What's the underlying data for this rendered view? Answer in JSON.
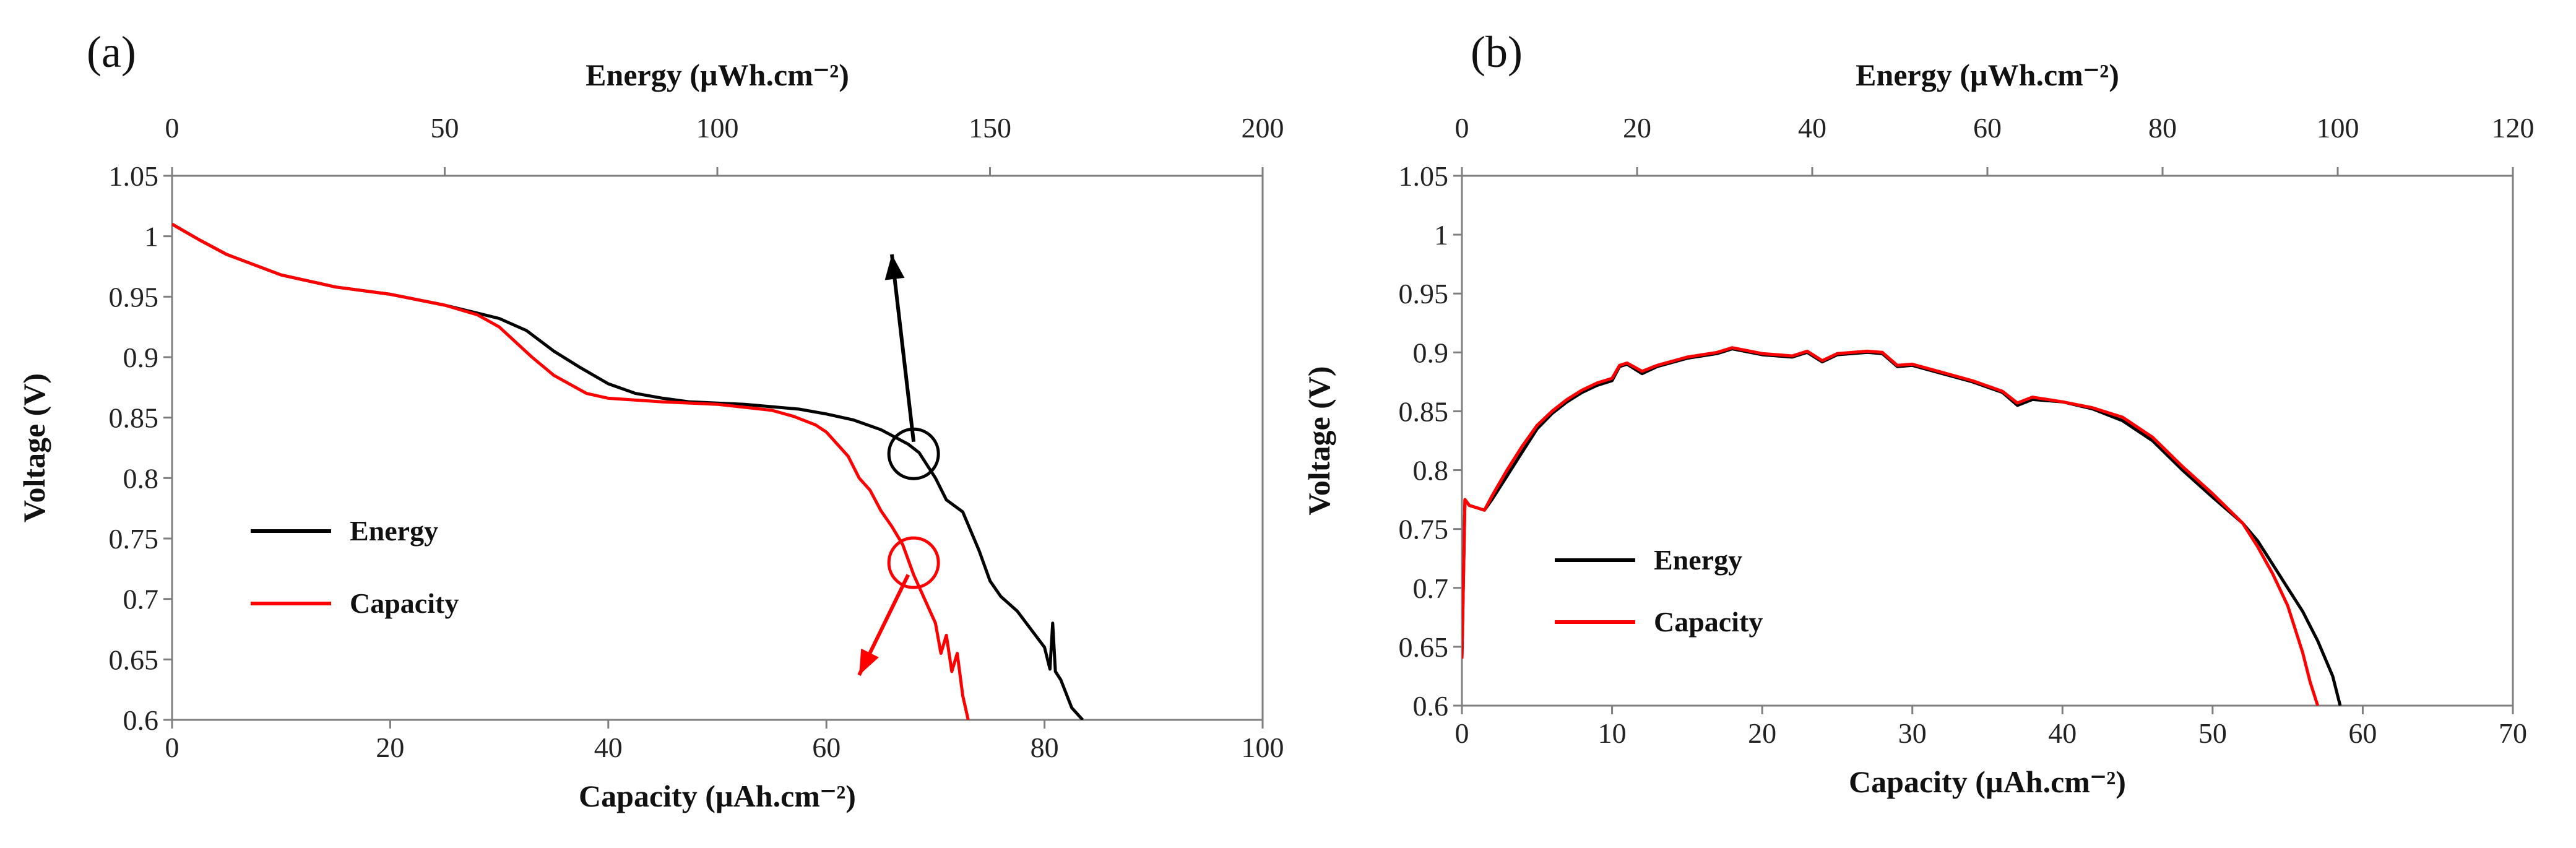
{
  "chart_data": [
    {
      "type": "line",
      "panel_label": "(a)",
      "xlabel": "Capacity (µAh.cm⁻²)",
      "x2label": "Energy (µWh.cm⁻²)",
      "ylabel": "Voltage (V)",
      "xlim": [
        0,
        100
      ],
      "x2lim": [
        0,
        200
      ],
      "ylim": [
        0.6,
        1.05
      ],
      "x_ticks": [
        0,
        20,
        40,
        60,
        80,
        100
      ],
      "x2_ticks": [
        0,
        50,
        100,
        150,
        200
      ],
      "y_ticks": [
        0.6,
        0.65,
        0.7,
        0.75,
        0.8,
        0.85,
        0.9,
        0.95,
        1,
        1.05
      ],
      "y_tick_labels": [
        "0.6",
        "0.65",
        "0.7",
        "0.75",
        "0.8",
        "0.85",
        "0.9",
        "0.95",
        "1",
        "1.05"
      ],
      "grid": false,
      "legend_position": "left-middle",
      "series": [
        {
          "name": "Energy",
          "axis": "top",
          "color": "#000000",
          "x": [
            0,
            5,
            10,
            20,
            30,
            40,
            50,
            60,
            65,
            70,
            75,
            80,
            85,
            90,
            95,
            100,
            105,
            110,
            115,
            120,
            125,
            130,
            135,
            137,
            140,
            142,
            145,
            148,
            150,
            152,
            155,
            158,
            160,
            161,
            161.5,
            162,
            163,
            165,
            167
          ],
          "y": [
            1.01,
            0.997,
            0.985,
            0.968,
            0.958,
            0.952,
            0.943,
            0.932,
            0.922,
            0.905,
            0.891,
            0.878,
            0.87,
            0.866,
            0.863,
            0.862,
            0.861,
            0.859,
            0.857,
            0.853,
            0.848,
            0.84,
            0.828,
            0.821,
            0.8,
            0.782,
            0.772,
            0.74,
            0.715,
            0.702,
            0.69,
            0.672,
            0.66,
            0.642,
            0.68,
            0.64,
            0.633,
            0.61,
            0.6
          ]
        },
        {
          "name": "Capacity",
          "axis": "bottom",
          "color": "#ff0000",
          "x": [
            0,
            2.5,
            5,
            10,
            15,
            20,
            25,
            28,
            30,
            33,
            35,
            38,
            40,
            45,
            50,
            55,
            57,
            59,
            60,
            62,
            63,
            64,
            65,
            66,
            67,
            68,
            69,
            70,
            70.5,
            71,
            71.5,
            72,
            72.5,
            73
          ],
          "y": [
            1.01,
            0.997,
            0.985,
            0.968,
            0.958,
            0.952,
            0.943,
            0.935,
            0.925,
            0.9,
            0.885,
            0.87,
            0.866,
            0.863,
            0.861,
            0.856,
            0.851,
            0.844,
            0.838,
            0.818,
            0.8,
            0.79,
            0.773,
            0.76,
            0.745,
            0.72,
            0.7,
            0.68,
            0.655,
            0.67,
            0.64,
            0.655,
            0.62,
            0.6
          ]
        }
      ],
      "annotations": [
        {
          "type": "circle",
          "series": "Energy",
          "x": 68,
          "y": 0.82,
          "color": "#000000"
        },
        {
          "type": "arrow",
          "color": "#000000",
          "from": [
            68,
            0.83
          ],
          "to": [
            66,
            0.985
          ]
        },
        {
          "type": "circle",
          "series": "Capacity",
          "x": 68,
          "y": 0.73,
          "color": "#ff0000"
        },
        {
          "type": "arrow",
          "color": "#ff0000",
          "from": [
            67.5,
            0.72
          ],
          "to": [
            63,
            0.637
          ]
        }
      ]
    },
    {
      "type": "line",
      "panel_label": "(b)",
      "xlabel": "Capacity (µAh.cm⁻²)",
      "x2label": "Energy (µWh.cm⁻²)",
      "ylabel": "Voltage (V)",
      "xlim": [
        0,
        70
      ],
      "x2lim": [
        0,
        120
      ],
      "ylim": [
        0.6,
        1.05
      ],
      "x_ticks": [
        0,
        10,
        20,
        30,
        40,
        50,
        60,
        70
      ],
      "x2_ticks": [
        0,
        20,
        40,
        60,
        80,
        100,
        120
      ],
      "y_ticks": [
        0.6,
        0.65,
        0.7,
        0.75,
        0.8,
        0.85,
        0.9,
        0.95,
        1,
        1.05
      ],
      "y_tick_labels": [
        "0.6",
        "0.65",
        "0.7",
        "0.75",
        "0.8",
        "0.85",
        "0.9",
        "0.95",
        "1",
        "1.05"
      ],
      "grid": false,
      "legend_position": "left-middle",
      "series": [
        {
          "name": "Energy",
          "axis": "bottom",
          "color": "#000000",
          "x": [
            0,
            0.2,
            0.5,
            1,
            1.5,
            2,
            3,
            4,
            5,
            6,
            7,
            8,
            9,
            10,
            10.5,
            11,
            12,
            13,
            15,
            17,
            18,
            20,
            22,
            23,
            24,
            25,
            27,
            28,
            29,
            30,
            32,
            34,
            36,
            37,
            38,
            40,
            42,
            44,
            46,
            48,
            50,
            52,
            53,
            54,
            55,
            56,
            57,
            58,
            58.5
          ],
          "y": [
            0.64,
            0.775,
            0.77,
            0.768,
            0.766,
            0.775,
            0.795,
            0.815,
            0.835,
            0.848,
            0.858,
            0.866,
            0.872,
            0.876,
            0.888,
            0.89,
            0.882,
            0.888,
            0.895,
            0.899,
            0.903,
            0.898,
            0.896,
            0.9,
            0.892,
            0.898,
            0.9,
            0.899,
            0.888,
            0.889,
            0.882,
            0.875,
            0.866,
            0.855,
            0.86,
            0.858,
            0.852,
            0.842,
            0.825,
            0.8,
            0.777,
            0.755,
            0.74,
            0.72,
            0.7,
            0.68,
            0.655,
            0.625,
            0.6
          ]
        },
        {
          "name": "Capacity",
          "axis": "bottom",
          "color": "#ff0000",
          "x": [
            0,
            0.2,
            0.5,
            1,
            1.5,
            2,
            3,
            4,
            5,
            6,
            7,
            8,
            9,
            10,
            10.5,
            11,
            12,
            13,
            15,
            17,
            18,
            20,
            22,
            23,
            24,
            25,
            27,
            28,
            29,
            30,
            32,
            34,
            36,
            37,
            38,
            40,
            42,
            44,
            46,
            48,
            50,
            52,
            53,
            54,
            55,
            55.5,
            56,
            56.5,
            57
          ],
          "y": [
            0.64,
            0.775,
            0.77,
            0.768,
            0.766,
            0.778,
            0.8,
            0.82,
            0.838,
            0.85,
            0.86,
            0.868,
            0.874,
            0.878,
            0.889,
            0.891,
            0.884,
            0.889,
            0.896,
            0.9,
            0.904,
            0.899,
            0.897,
            0.901,
            0.893,
            0.899,
            0.901,
            0.9,
            0.889,
            0.89,
            0.883,
            0.876,
            0.867,
            0.857,
            0.862,
            0.858,
            0.853,
            0.845,
            0.828,
            0.803,
            0.78,
            0.755,
            0.735,
            0.712,
            0.685,
            0.665,
            0.645,
            0.62,
            0.6
          ]
        }
      ],
      "annotations": []
    }
  ]
}
